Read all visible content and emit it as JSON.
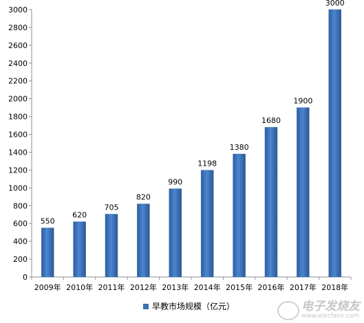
{
  "chart_data": {
    "type": "bar",
    "categories": [
      "2009年",
      "2010年",
      "2011年",
      "2012年",
      "2013年",
      "2014年",
      "2015年",
      "2016年",
      "2017年",
      "2018年"
    ],
    "series": [
      {
        "name": "早教市场规模（亿元）",
        "values": [
          550,
          620,
          705,
          820,
          990,
          1198,
          1380,
          1680,
          1900,
          3000
        ],
        "color": "#3d6fb3"
      }
    ],
    "data_labels": [
      "550",
      "620",
      "705",
      "820",
      "990",
      "1198",
      "1380",
      "1680",
      "1900",
      "3000"
    ],
    "y_ticks": [
      "0",
      "200",
      "400",
      "600",
      "800",
      "1000",
      "1200",
      "1400",
      "1600",
      "1800",
      "2000",
      "2200",
      "2400",
      "2600",
      "2800",
      "3000"
    ],
    "ylim": [
      0,
      3000
    ],
    "legend_position": "bottom-center",
    "grid": false
  },
  "watermark": {
    "main": "电子发烧友",
    "sub": "www.elecfans.com"
  }
}
